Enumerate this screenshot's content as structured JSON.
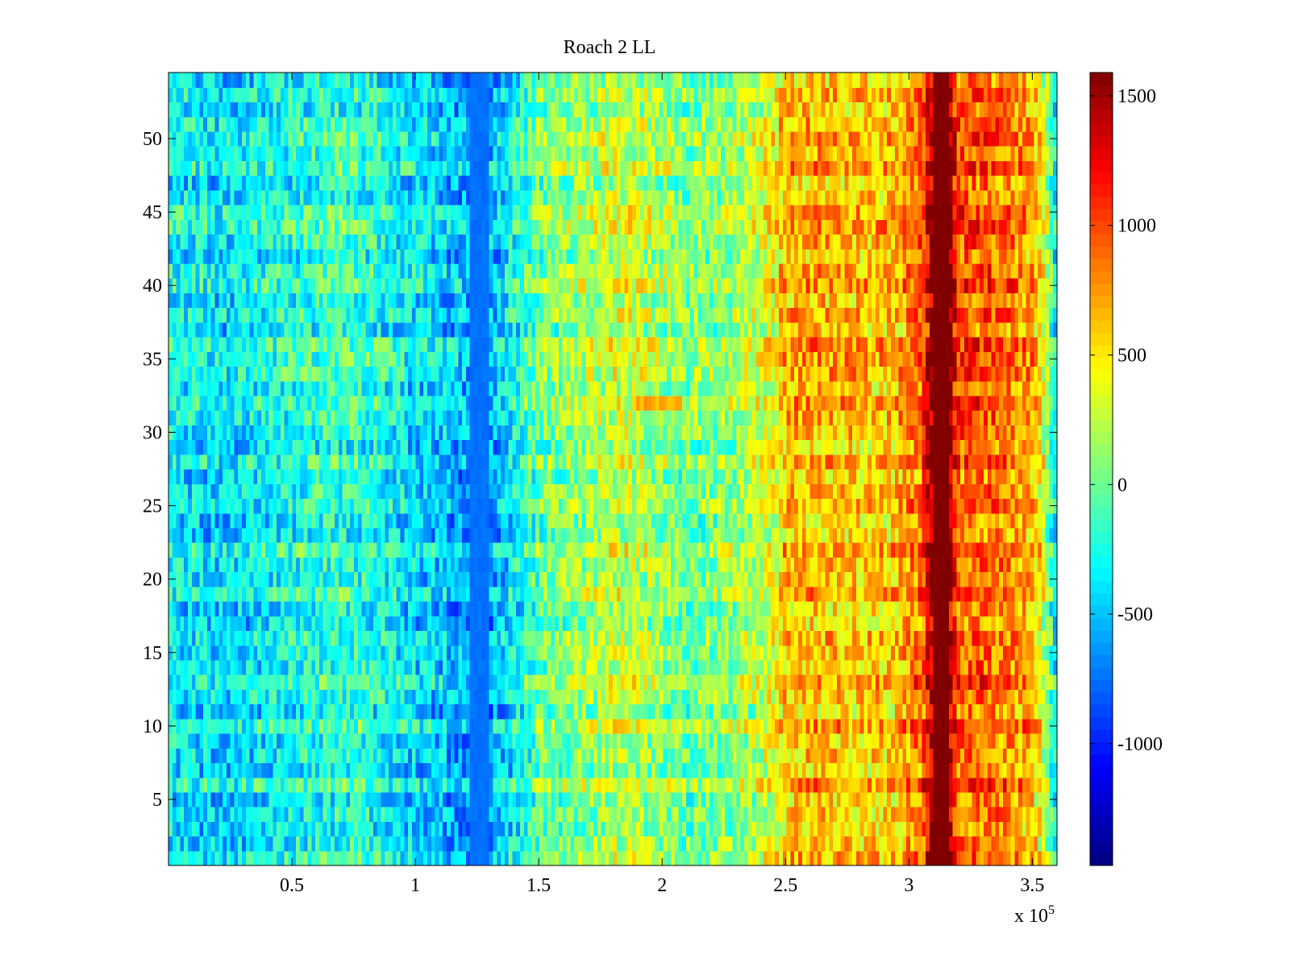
{
  "chart_data": {
    "type": "heatmap",
    "title": "Roach 2 LL",
    "xlabel": "",
    "ylabel": "",
    "x_exponent_label": "x 10",
    "x_exponent_power": "5",
    "xlim": [
      0.0,
      3.6
    ],
    "ylim": [
      0.5,
      54.5
    ],
    "n_rows": 54,
    "x_ticks": [
      {
        "value": 0.5,
        "label": "0.5"
      },
      {
        "value": 1.0,
        "label": "1"
      },
      {
        "value": 1.5,
        "label": "1.5"
      },
      {
        "value": 2.0,
        "label": "2"
      },
      {
        "value": 2.5,
        "label": "2.5"
      },
      {
        "value": 3.0,
        "label": "3"
      },
      {
        "value": 3.5,
        "label": "3.5"
      }
    ],
    "y_ticks": [
      {
        "value": 5,
        "label": "5"
      },
      {
        "value": 10,
        "label": "10"
      },
      {
        "value": 15,
        "label": "15"
      },
      {
        "value": 20,
        "label": "20"
      },
      {
        "value": 25,
        "label": "25"
      },
      {
        "value": 30,
        "label": "30"
      },
      {
        "value": 35,
        "label": "35"
      },
      {
        "value": 40,
        "label": "40"
      },
      {
        "value": 45,
        "label": "45"
      },
      {
        "value": 50,
        "label": "50"
      }
    ],
    "colorbar": {
      "colormap": "jet",
      "clim": [
        -1470,
        1590
      ],
      "ticks": [
        {
          "value": 1500,
          "label": "1500"
        },
        {
          "value": 1000,
          "label": "1000"
        },
        {
          "value": 500,
          "label": "500"
        },
        {
          "value": 0,
          "label": "0"
        },
        {
          "value": -500,
          "label": "-500"
        },
        {
          "value": -1000,
          "label": "-1000"
        }
      ]
    },
    "column_profile": {
      "x": [
        0.0,
        0.1,
        0.2,
        0.3,
        0.4,
        0.5,
        0.6,
        0.7,
        0.8,
        0.9,
        1.0,
        1.1,
        1.15,
        1.2,
        1.25,
        1.28,
        1.3,
        1.35,
        1.4,
        1.45,
        1.5,
        1.6,
        1.7,
        1.75,
        1.8,
        1.9,
        2.0,
        2.1,
        2.2,
        2.3,
        2.4,
        2.45,
        2.5,
        2.6,
        2.7,
        2.8,
        2.9,
        2.95,
        3.0,
        3.05,
        3.1,
        3.16,
        3.2,
        3.3,
        3.4,
        3.5,
        3.55,
        3.6
      ],
      "mean_value": [
        -300,
        -350,
        -400,
        -380,
        -300,
        -250,
        -200,
        -150,
        -200,
        -300,
        -400,
        -450,
        -500,
        -550,
        -650,
        -800,
        -550,
        -450,
        -300,
        -150,
        0,
        80,
        150,
        200,
        280,
        250,
        150,
        50,
        80,
        150,
        300,
        400,
        650,
        680,
        650,
        620,
        600,
        650,
        800,
        900,
        1590,
        1590,
        950,
        950,
        850,
        700,
        300,
        -400
      ]
    },
    "notable_features": [
      {
        "description": "saturated high band",
        "x_range": [
          3.1,
          3.16
        ],
        "value": 1590
      },
      {
        "description": "low band",
        "x_range": [
          1.22,
          1.3
        ],
        "value": -750
      },
      {
        "description": "high row segment",
        "y": 32,
        "x_range": [
          1.9,
          2.08
        ],
        "value": 700
      }
    ]
  },
  "colors": {
    "background": "#ffffff",
    "axis": "#000000"
  }
}
